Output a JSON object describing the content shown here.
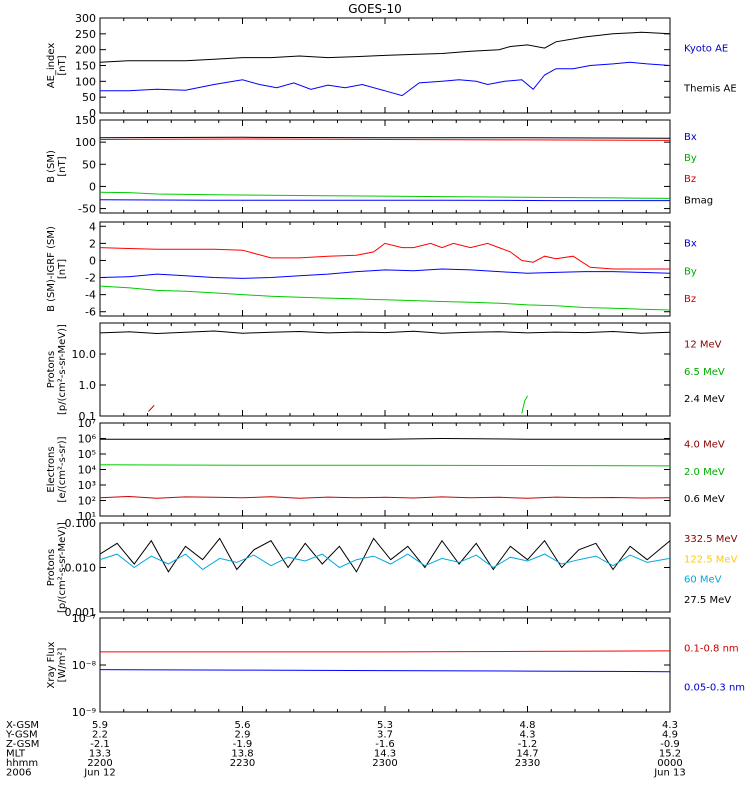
{
  "title": "GOES-10",
  "footer": {
    "rows": [
      {
        "label": "X-GSM",
        "values": [
          "5.9",
          "5.6",
          "5.3",
          "4.8",
          "4.3"
        ]
      },
      {
        "label": "Y-GSM",
        "values": [
          "2.2",
          "2.9",
          "3.7",
          "4.3",
          "4.9"
        ]
      },
      {
        "label": "Z-GSM",
        "values": [
          "-2.1",
          "-1.9",
          "-1.6",
          "-1.2",
          "-0.9"
        ]
      },
      {
        "label": "MLT",
        "values": [
          "13.3",
          "13.8",
          "14.3",
          "14.7",
          "15.2"
        ]
      },
      {
        "label": "hhmm",
        "values": [
          "2200",
          "2230",
          "2300",
          "2330",
          "0000"
        ]
      },
      {
        "label": "2006",
        "values": [
          "Jun 12",
          "",
          "",
          "",
          "Jun 13"
        ]
      }
    ]
  },
  "chart_data": [
    {
      "type": "line",
      "ylabel": [
        "AE_index",
        "[nT]"
      ],
      "scale": "linear",
      "ylim": [
        0,
        300
      ],
      "ticks": [
        "0",
        "50",
        "100",
        "150",
        "200",
        "250",
        "300"
      ],
      "tick_values": [
        0,
        50,
        100,
        150,
        200,
        250,
        300
      ],
      "legend": [
        {
          "label": "Kyoto AE",
          "color": "#0000cc"
        },
        {
          "label": "Themis AE",
          "color": "#000000"
        }
      ],
      "series": [
        {
          "name": "Kyoto AE",
          "color": "#0000ff",
          "x": [
            0,
            0.05,
            0.1,
            0.15,
            0.2,
            0.25,
            0.28,
            0.31,
            0.34,
            0.37,
            0.4,
            0.43,
            0.46,
            0.5,
            0.53,
            0.56,
            0.6,
            0.63,
            0.66,
            0.68,
            0.71,
            0.74,
            0.76,
            0.78,
            0.8,
            0.83,
            0.86,
            0.9,
            0.93,
            0.96,
            1.0
          ],
          "y": [
            70,
            70,
            75,
            72,
            90,
            105,
            90,
            80,
            95,
            75,
            88,
            80,
            90,
            70,
            55,
            95,
            100,
            105,
            100,
            90,
            100,
            105,
            75,
            120,
            140,
            140,
            150,
            155,
            160,
            155,
            150
          ]
        },
        {
          "name": "Themis AE",
          "color": "#000000",
          "x": [
            0,
            0.05,
            0.1,
            0.15,
            0.2,
            0.25,
            0.3,
            0.35,
            0.4,
            0.45,
            0.5,
            0.55,
            0.6,
            0.65,
            0.7,
            0.72,
            0.75,
            0.78,
            0.8,
            0.85,
            0.9,
            0.95,
            1.0
          ],
          "y": [
            160,
            165,
            165,
            165,
            170,
            175,
            175,
            180,
            175,
            178,
            182,
            185,
            188,
            195,
            200,
            210,
            215,
            205,
            225,
            240,
            250,
            255,
            250
          ]
        }
      ]
    },
    {
      "type": "line",
      "ylabel": [
        "B (SM)",
        "[nT]"
      ],
      "scale": "linear",
      "ylim": [
        -60,
        150
      ],
      "ticks": [
        "-50",
        "0",
        "50",
        "100",
        "150"
      ],
      "tick_values": [
        -50,
        0,
        50,
        100,
        150
      ],
      "legend": [
        {
          "label": "Bx",
          "color": "#0000cc"
        },
        {
          "label": "By",
          "color": "#00aa00"
        },
        {
          "label": "Bz",
          "color": "#cc0000"
        },
        {
          "label": "Bmag",
          "color": "#000000"
        }
      ],
      "series": [
        {
          "name": "Bmag",
          "color": "#000000",
          "x": [
            0,
            0.25,
            0.5,
            0.75,
            1.0
          ],
          "y": [
            110,
            111,
            110,
            110,
            109
          ]
        },
        {
          "name": "Bz",
          "color": "#ff0000",
          "x": [
            0,
            0.25,
            0.5,
            0.75,
            1.0
          ],
          "y": [
            106,
            107,
            106,
            105,
            104
          ]
        },
        {
          "name": "By",
          "color": "#00cc00",
          "x": [
            0,
            0.05,
            0.1,
            0.2,
            0.4,
            0.6,
            0.8,
            0.9,
            1.0
          ],
          "y": [
            -13,
            -14,
            -17,
            -19,
            -21,
            -23,
            -25,
            -26,
            -27
          ]
        },
        {
          "name": "Bx",
          "color": "#0000ff",
          "x": [
            0,
            0.2,
            0.4,
            0.6,
            0.8,
            1.0
          ],
          "y": [
            -30,
            -31,
            -31,
            -31,
            -32,
            -32
          ]
        }
      ]
    },
    {
      "type": "line",
      "ylabel": [
        "B (SM)-IGRF (SM)",
        "[nT]"
      ],
      "scale": "linear",
      "ylim": [
        -6.5,
        4.5
      ],
      "ticks": [
        "-6",
        "-4",
        "-2",
        "0",
        "2",
        "4"
      ],
      "tick_values": [
        -6,
        -4,
        -2,
        0,
        2,
        4
      ],
      "legend": [
        {
          "label": "Bx",
          "color": "#0000cc"
        },
        {
          "label": "By",
          "color": "#00aa00"
        },
        {
          "label": "Bz",
          "color": "#cc0000"
        }
      ],
      "series": [
        {
          "name": "Bz",
          "color": "#ff0000",
          "x": [
            0,
            0.05,
            0.1,
            0.15,
            0.2,
            0.25,
            0.3,
            0.33,
            0.35,
            0.4,
            0.45,
            0.48,
            0.5,
            0.53,
            0.55,
            0.58,
            0.6,
            0.62,
            0.65,
            0.68,
            0.7,
            0.72,
            0.74,
            0.76,
            0.78,
            0.8,
            0.83,
            0.86,
            0.9,
            1.0
          ],
          "y": [
            1.5,
            1.4,
            1.3,
            1.3,
            1.3,
            1.2,
            0.3,
            0.3,
            0.3,
            0.5,
            0.6,
            1.0,
            2.0,
            1.5,
            1.5,
            2.0,
            1.5,
            2.0,
            1.5,
            2.0,
            1.5,
            1.0,
            0.0,
            -0.2,
            0.5,
            0.2,
            0.5,
            -0.8,
            -1.0,
            -1.0
          ]
        },
        {
          "name": "Bx",
          "color": "#0000ff",
          "x": [
            0,
            0.05,
            0.1,
            0.15,
            0.2,
            0.25,
            0.3,
            0.35,
            0.4,
            0.45,
            0.5,
            0.55,
            0.6,
            0.65,
            0.7,
            0.75,
            0.8,
            0.85,
            0.9,
            0.95,
            1.0
          ],
          "y": [
            -2.0,
            -1.9,
            -1.6,
            -1.8,
            -2.0,
            -2.1,
            -2.0,
            -1.8,
            -1.6,
            -1.3,
            -1.1,
            -1.2,
            -1.0,
            -1.1,
            -1.3,
            -1.5,
            -1.4,
            -1.3,
            -1.3,
            -1.4,
            -1.5
          ]
        },
        {
          "name": "By",
          "color": "#00cc00",
          "x": [
            0,
            0.05,
            0.1,
            0.15,
            0.2,
            0.25,
            0.3,
            0.35,
            0.4,
            0.45,
            0.5,
            0.55,
            0.6,
            0.65,
            0.7,
            0.75,
            0.8,
            0.85,
            0.9,
            0.95,
            1.0
          ],
          "y": [
            -3.0,
            -3.2,
            -3.5,
            -3.6,
            -3.8,
            -4.0,
            -4.2,
            -4.3,
            -4.4,
            -4.5,
            -4.6,
            -4.7,
            -4.8,
            -4.9,
            -5.0,
            -5.2,
            -5.3,
            -5.5,
            -5.6,
            -5.7,
            -5.8
          ]
        }
      ]
    },
    {
      "type": "line",
      "ylabel": [
        "Protons",
        "[p/(cm²-s-sr-MeV)]"
      ],
      "scale": "log",
      "ylim": [
        0.1,
        100
      ],
      "ticks": [
        "0.1",
        "1.0",
        "10.0"
      ],
      "tick_values": [
        0.1,
        1,
        10
      ],
      "legend": [
        {
          "label": "12 MeV",
          "color": "#880000"
        },
        {
          "label": "6.5 MeV",
          "color": "#00aa00"
        },
        {
          "label": "2.4 MeV",
          "color": "#000000"
        }
      ],
      "series": [
        {
          "name": "2.4 MeV",
          "color": "#000000",
          "x": [
            0,
            0.05,
            0.1,
            0.15,
            0.2,
            0.25,
            0.3,
            0.35,
            0.4,
            0.45,
            0.5,
            0.55,
            0.6,
            0.65,
            0.7,
            0.75,
            0.8,
            0.85,
            0.9,
            0.95,
            1.0
          ],
          "y": [
            48,
            52,
            46,
            50,
            55,
            47,
            50,
            53,
            48,
            51,
            49,
            54,
            47,
            50,
            52,
            48,
            51,
            49,
            53,
            47,
            50
          ]
        },
        {
          "name": "6.5 MeV",
          "color": "#00cc00",
          "x": [
            0.74,
            0.745,
            0.75
          ],
          "y": [
            0.12,
            0.3,
            0.45
          ]
        },
        {
          "name": "12 MeV",
          "color": "#cc0000",
          "x": [
            0.085,
            0.095
          ],
          "y": [
            0.14,
            0.22
          ]
        }
      ]
    },
    {
      "type": "line",
      "ylabel": [
        "Electrons",
        "[e/(cm²-s-sr)]"
      ],
      "scale": "log",
      "ylim": [
        10,
        10000000
      ],
      "ticks": [
        "10¹",
        "10²",
        "10³",
        "10⁴",
        "10⁵",
        "10⁶",
        "10⁷"
      ],
      "tick_values": [
        10,
        100,
        1000,
        10000,
        100000,
        1000000,
        10000000
      ],
      "legend": [
        {
          "label": "4.0 MeV",
          "color": "#880000"
        },
        {
          "label": "2.0 MeV",
          "color": "#00aa00"
        },
        {
          "label": "0.6 MeV",
          "color": "#000000"
        }
      ],
      "series": [
        {
          "name": "0.6 MeV",
          "color": "#000000",
          "x": [
            0,
            0.25,
            0.5,
            0.6,
            0.75,
            1.0
          ],
          "y": [
            900000,
            900000,
            900000,
            1000000,
            900000,
            900000
          ]
        },
        {
          "name": "2.0 MeV",
          "color": "#00cc00",
          "x": [
            0,
            0.25,
            0.5,
            0.75,
            1.0
          ],
          "y": [
            20000,
            19000,
            19000,
            18000,
            17000
          ]
        },
        {
          "name": "4.0 MeV",
          "color": "#cc0000",
          "x": [
            0,
            0.05,
            0.1,
            0.15,
            0.2,
            0.25,
            0.3,
            0.35,
            0.4,
            0.45,
            0.5,
            0.55,
            0.6,
            0.65,
            0.7,
            0.75,
            0.8,
            0.85,
            0.9,
            0.95,
            1.0
          ],
          "y": [
            150,
            180,
            140,
            170,
            160,
            150,
            175,
            140,
            165,
            150,
            160,
            145,
            170,
            150,
            160,
            140,
            165,
            150,
            155,
            145,
            150
          ]
        }
      ]
    },
    {
      "type": "line",
      "ylabel": [
        "Protons",
        "[p/(cm²-s-sr-MeV)]"
      ],
      "scale": "log",
      "ylim": [
        0.001,
        0.1
      ],
      "ticks": [
        "0.001",
        "0.010",
        "0.100"
      ],
      "tick_values": [
        0.001,
        0.01,
        0.1
      ],
      "legend": [
        {
          "label": "332.5 MeV",
          "color": "#880000"
        },
        {
          "label": "122.5 MeV",
          "color": "#ffcc00"
        },
        {
          "label": "60 MeV",
          "color": "#00aadd"
        },
        {
          "label": "27.5 MeV",
          "color": "#000000"
        }
      ],
      "series": [
        {
          "name": "27.5 MeV",
          "color": "#000000",
          "x": [
            0,
            0.03,
            0.06,
            0.09,
            0.12,
            0.15,
            0.18,
            0.21,
            0.24,
            0.27,
            0.3,
            0.33,
            0.36,
            0.39,
            0.42,
            0.45,
            0.48,
            0.51,
            0.54,
            0.57,
            0.6,
            0.63,
            0.66,
            0.69,
            0.72,
            0.75,
            0.78,
            0.81,
            0.84,
            0.87,
            0.9,
            0.93,
            0.96,
            1.0
          ],
          "y": [
            0.02,
            0.035,
            0.012,
            0.04,
            0.008,
            0.03,
            0.015,
            0.045,
            0.009,
            0.025,
            0.04,
            0.01,
            0.035,
            0.012,
            0.03,
            0.008,
            0.045,
            0.015,
            0.03,
            0.01,
            0.04,
            0.012,
            0.035,
            0.009,
            0.03,
            0.015,
            0.04,
            0.01,
            0.025,
            0.035,
            0.009,
            0.03,
            0.015,
            0.04
          ]
        },
        {
          "name": "60 MeV",
          "color": "#00aadd",
          "x": [
            0,
            0.03,
            0.06,
            0.09,
            0.12,
            0.15,
            0.18,
            0.21,
            0.24,
            0.27,
            0.3,
            0.33,
            0.36,
            0.39,
            0.42,
            0.45,
            0.48,
            0.51,
            0.54,
            0.57,
            0.6,
            0.63,
            0.66,
            0.69,
            0.72,
            0.75,
            0.78,
            0.81,
            0.84,
            0.87,
            0.9,
            0.93,
            0.96,
            1.0
          ],
          "y": [
            0.015,
            0.02,
            0.01,
            0.018,
            0.012,
            0.02,
            0.009,
            0.016,
            0.013,
            0.019,
            0.011,
            0.017,
            0.014,
            0.02,
            0.01,
            0.015,
            0.018,
            0.012,
            0.02,
            0.011,
            0.016,
            0.013,
            0.019,
            0.01,
            0.017,
            0.014,
            0.02,
            0.012,
            0.015,
            0.018,
            0.011,
            0.019,
            0.013,
            0.016
          ]
        }
      ]
    },
    {
      "type": "line",
      "ylabel": [
        "Xray Flux",
        "[W/m²]"
      ],
      "scale": "log",
      "ylim": [
        1e-09,
        1e-07
      ],
      "ticks": [
        "10⁻⁹",
        "10⁻⁸",
        "10⁻⁷"
      ],
      "tick_values": [
        1e-09,
        1e-08,
        1e-07
      ],
      "legend": [
        {
          "label": "0.1-0.8 nm",
          "color": "#cc0000"
        },
        {
          "label": "0.05-0.3 nm",
          "color": "#0000cc"
        }
      ],
      "series": [
        {
          "name": "0.1-0.8 nm",
          "color": "#ff0000",
          "x": [
            0,
            0.25,
            0.5,
            0.75,
            1.0
          ],
          "y": [
            1.9e-08,
            1.9e-08,
            1.9e-08,
            1.95e-08,
            2e-08
          ]
        },
        {
          "name": "0.05-0.3 nm",
          "color": "#0000ff",
          "x": [
            0,
            0.25,
            0.5,
            0.75,
            1.0
          ],
          "y": [
            8e-09,
            7.8e-09,
            7.6e-09,
            7.4e-09,
            7.2e-09
          ]
        }
      ]
    }
  ]
}
